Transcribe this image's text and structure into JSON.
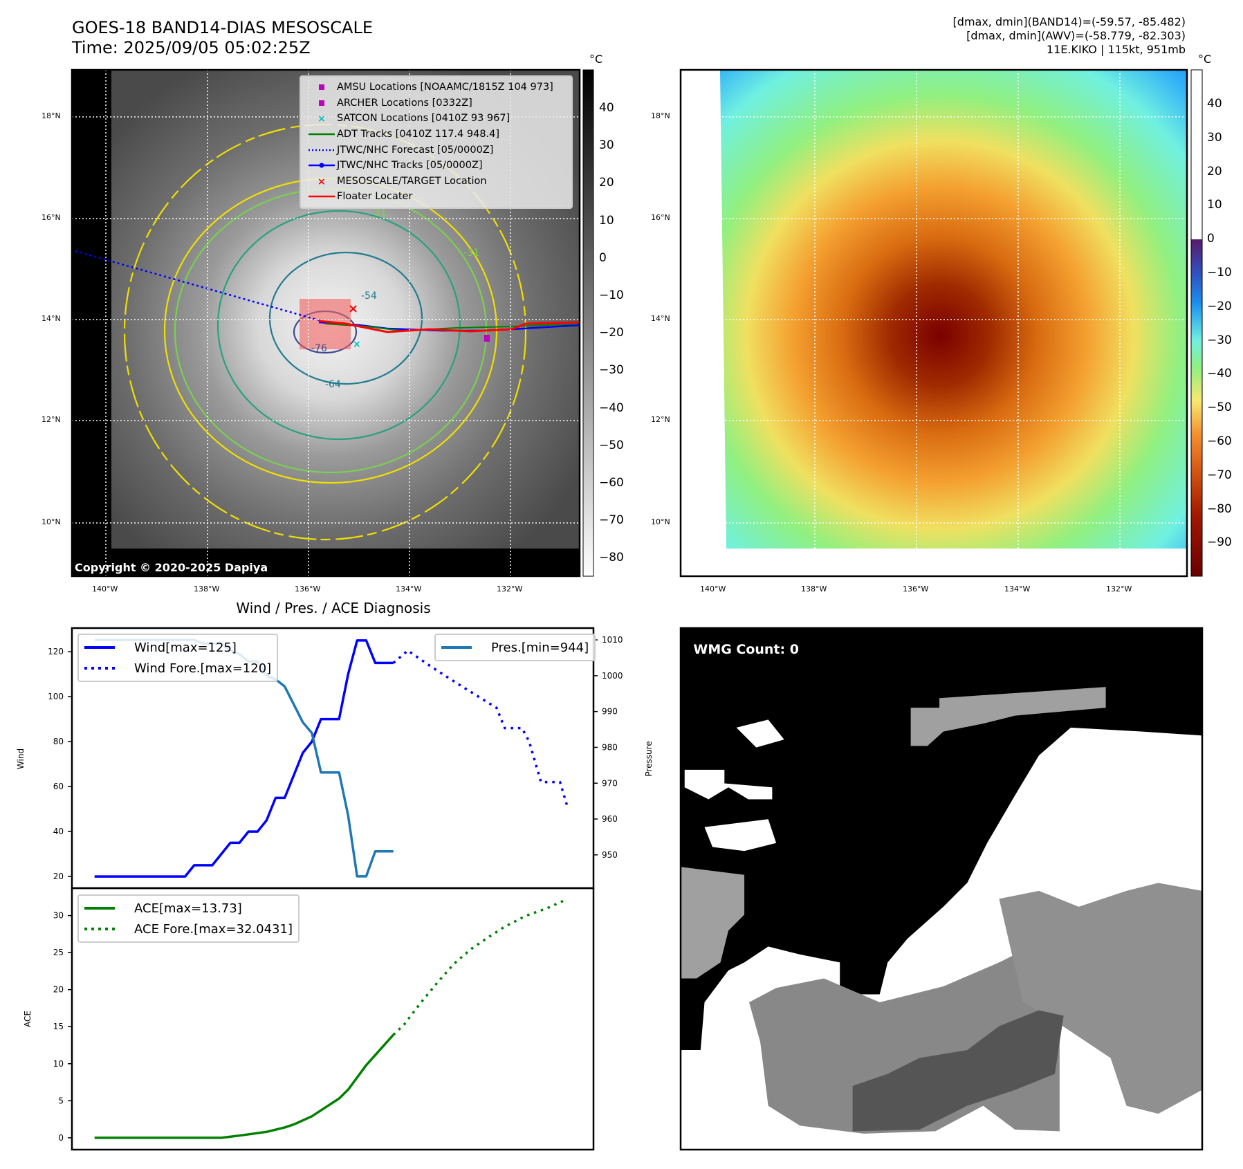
{
  "header": {
    "title_line1": "GOES-18 BAND14-DIAS MESOSCALE",
    "title_line2": "Time: 2025/09/05 05:02:25Z",
    "stats_line1": "[dmax, dmin](BAND14)=(-59.57, -85.482)",
    "stats_line2": "[dmax, dmin](AWV)=(-58.779, -82.303)",
    "stats_line3": "11E.KIKO | 115kt, 951mb"
  },
  "maps": {
    "lat_ticks": [
      "18°N",
      "16°N",
      "14°N",
      "12°N",
      "10°N"
    ],
    "lon_ticks": [
      "140°W",
      "138°W",
      "136°W",
      "134°W",
      "132°W"
    ],
    "copyright": "Copyright © 2020-2025 Dapiya",
    "contour_labels": [
      "-31",
      "-54",
      "-64",
      "-76",
      "-31"
    ],
    "legend": [
      {
        "label": "AMSU Locations [NOAAMC/1815Z 104 973]",
        "icon": "square-marker",
        "color": "#bf00bf"
      },
      {
        "label": "ARCHER Locations [0332Z]",
        "icon": "square-marker",
        "color": "#bf00bf"
      },
      {
        "label": "SATCON Locations [0410Z 93 967]",
        "icon": "x-marker",
        "color": "#00bfbf"
      },
      {
        "label": "ADT Tracks [0410Z 117.4 948.4]",
        "icon": "solid-line",
        "color": "#008000"
      },
      {
        "label": "JTWC/NHC Forecast [05/0000Z]",
        "icon": "dotted-line",
        "color": "#0000ff"
      },
      {
        "label": "JTWC/NHC Tracks [05/0000Z]",
        "icon": "line-dot",
        "color": "#0000ff"
      },
      {
        "label": "MESOSCALE/TARGET Location",
        "icon": "x-marker",
        "color": "#ff0000"
      },
      {
        "label": "Floater Locater",
        "icon": "solid-line",
        "color": "#ff0000"
      }
    ],
    "colorbar_left": {
      "unit": "°C",
      "ticks": [
        "40",
        "30",
        "20",
        "10",
        "0",
        "−10",
        "−20",
        "−30",
        "−40",
        "−50",
        "−60",
        "−70",
        "−80"
      ]
    },
    "colorbar_right": {
      "unit": "°C",
      "ticks": [
        "40",
        "30",
        "20",
        "10",
        "0",
        "−10",
        "−20",
        "−30",
        "−40",
        "−50",
        "−60",
        "−70",
        "−80",
        "−90"
      ]
    }
  },
  "wmg": {
    "label": "WMG Count: 0"
  },
  "chart_data": [
    {
      "type": "line",
      "title": "Wind / Pres. / ACE Diagnosis",
      "ylabel": "Wind",
      "y2label": "Pressure",
      "xlim": [
        -2.5,
        55.1
      ],
      "ylim": [
        14.8,
        130.5
      ],
      "y2lim": [
        940.7,
        1013.3
      ],
      "yticks": [
        20,
        40,
        60,
        80,
        100,
        120
      ],
      "y2ticks": [
        950,
        960,
        970,
        980,
        990,
        1000,
        1010
      ],
      "series": [
        {
          "name": "Wind[max=125]",
          "axis": "left",
          "style": "solid",
          "color": "#0000ff",
          "points": [
            [
              0,
              20
            ],
            [
              10,
              20
            ],
            [
              11,
              25
            ],
            [
              13,
              25
            ],
            [
              15,
              35
            ],
            [
              16,
              35
            ],
            [
              17,
              40
            ],
            [
              18,
              40
            ],
            [
              19,
              45
            ],
            [
              20,
              55
            ],
            [
              21,
              55
            ],
            [
              23,
              75
            ],
            [
              24,
              80
            ],
            [
              25,
              90
            ],
            [
              27,
              90
            ],
            [
              28,
              110
            ],
            [
              29,
              125
            ],
            [
              30,
              125
            ],
            [
              31,
              115
            ],
            [
              33,
              115
            ]
          ]
        },
        {
          "name": "Wind Fore.[max=120]",
          "axis": "left",
          "style": "dotted",
          "color": "#0000ff",
          "points": [
            [
              33,
              115
            ],
            [
              34.6,
              120.5
            ],
            [
              37.3,
              113
            ],
            [
              40,
              106
            ],
            [
              42,
              101
            ],
            [
              44.4,
              95
            ],
            [
              45.3,
              86
            ],
            [
              47.2,
              86
            ],
            [
              48,
              80
            ],
            [
              49.3,
              62
            ],
            [
              51.4,
              62
            ],
            [
              52.3,
              50
            ]
          ]
        },
        {
          "name": "Pres.[min=944]",
          "axis": "right",
          "style": "solid",
          "color": "#1f77b4",
          "points": [
            [
              0,
              1010
            ],
            [
              11,
              1010
            ],
            [
              12,
              1009
            ],
            [
              14,
              1009
            ],
            [
              15,
              1007
            ],
            [
              16,
              1006
            ],
            [
              17,
              1004
            ],
            [
              18,
              1004
            ],
            [
              19,
              1000
            ],
            [
              20,
              999
            ],
            [
              21,
              997
            ],
            [
              23,
              987
            ],
            [
              24,
              984
            ],
            [
              25,
              973
            ],
            [
              27,
              973
            ],
            [
              28,
              961
            ],
            [
              29,
              944
            ],
            [
              30,
              944
            ],
            [
              31,
              951
            ],
            [
              33,
              951
            ]
          ]
        }
      ],
      "legend_left": [
        "Wind[max=125]",
        "Wind Fore.[max=120]"
      ],
      "legend_right": [
        "Pres.[min=944]"
      ]
    },
    {
      "type": "line",
      "ylabel": "ACE",
      "xlim": [
        -2.5,
        55.1
      ],
      "ylim": [
        -1.6,
        33.7
      ],
      "yticks": [
        0,
        5,
        10,
        15,
        20,
        25,
        30
      ],
      "series": [
        {
          "name": "ACE[max=13.73]",
          "style": "solid",
          "color": "#008000",
          "points": [
            [
              0,
              0
            ],
            [
              14,
              0
            ],
            [
              16,
              0.3
            ],
            [
              19,
              0.8
            ],
            [
              21,
              1.4
            ],
            [
              22,
              1.8
            ],
            [
              24,
              2.9
            ],
            [
              25,
              3.7
            ],
            [
              27,
              5.3
            ],
            [
              28,
              6.5
            ],
            [
              30,
              9.8
            ],
            [
              33,
              13.9
            ]
          ]
        },
        {
          "name": "ACE Fore.[max=32.0431]",
          "style": "dotted",
          "color": "#008000",
          "points": [
            [
              33,
              13.9
            ],
            [
              34.2,
              15.3
            ],
            [
              36,
              18.2
            ],
            [
              37.9,
              21
            ],
            [
              39.7,
              23.5
            ],
            [
              41.6,
              25.5
            ],
            [
              43.4,
              27
            ],
            [
              45.3,
              28.5
            ],
            [
              47.7,
              30
            ],
            [
              50,
              31
            ],
            [
              51.8,
              32
            ]
          ]
        }
      ],
      "legend": [
        "ACE[max=13.73]",
        "ACE Fore.[max=32.0431]"
      ]
    }
  ]
}
